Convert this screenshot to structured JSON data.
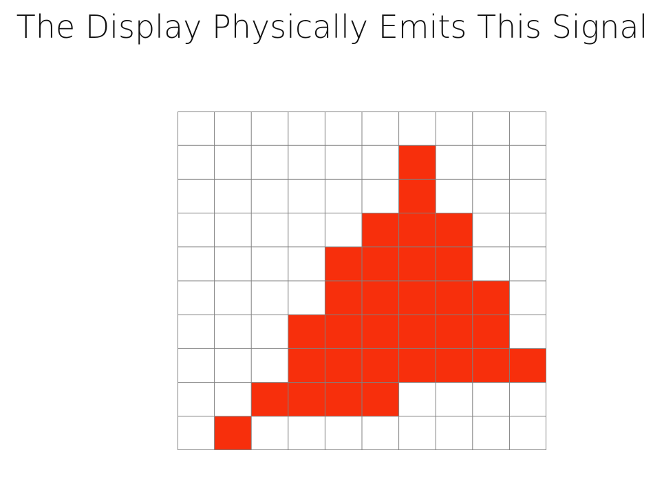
{
  "slide": {
    "title": "The Display Physically Emits This Signal"
  },
  "pixel_grid": {
    "columns": 10,
    "rows": 10,
    "fill_color": "#f72f0c",
    "empty_color": "#ffffff",
    "line_color": "#808080",
    "cells": [
      [
        0,
        0,
        0,
        0,
        0,
        0,
        0,
        0,
        0,
        0
      ],
      [
        0,
        0,
        0,
        0,
        0,
        0,
        1,
        0,
        0,
        0
      ],
      [
        0,
        0,
        0,
        0,
        0,
        0,
        1,
        0,
        0,
        0
      ],
      [
        0,
        0,
        0,
        0,
        0,
        1,
        1,
        1,
        0,
        0
      ],
      [
        0,
        0,
        0,
        0,
        1,
        1,
        1,
        1,
        0,
        0
      ],
      [
        0,
        0,
        0,
        0,
        1,
        1,
        1,
        1,
        1,
        0
      ],
      [
        0,
        0,
        0,
        1,
        1,
        1,
        1,
        1,
        1,
        0
      ],
      [
        0,
        0,
        0,
        1,
        1,
        1,
        1,
        1,
        1,
        1
      ],
      [
        0,
        0,
        1,
        1,
        1,
        1,
        0,
        0,
        0,
        0
      ],
      [
        0,
        1,
        0,
        0,
        0,
        0,
        0,
        0,
        0,
        0
      ]
    ]
  }
}
